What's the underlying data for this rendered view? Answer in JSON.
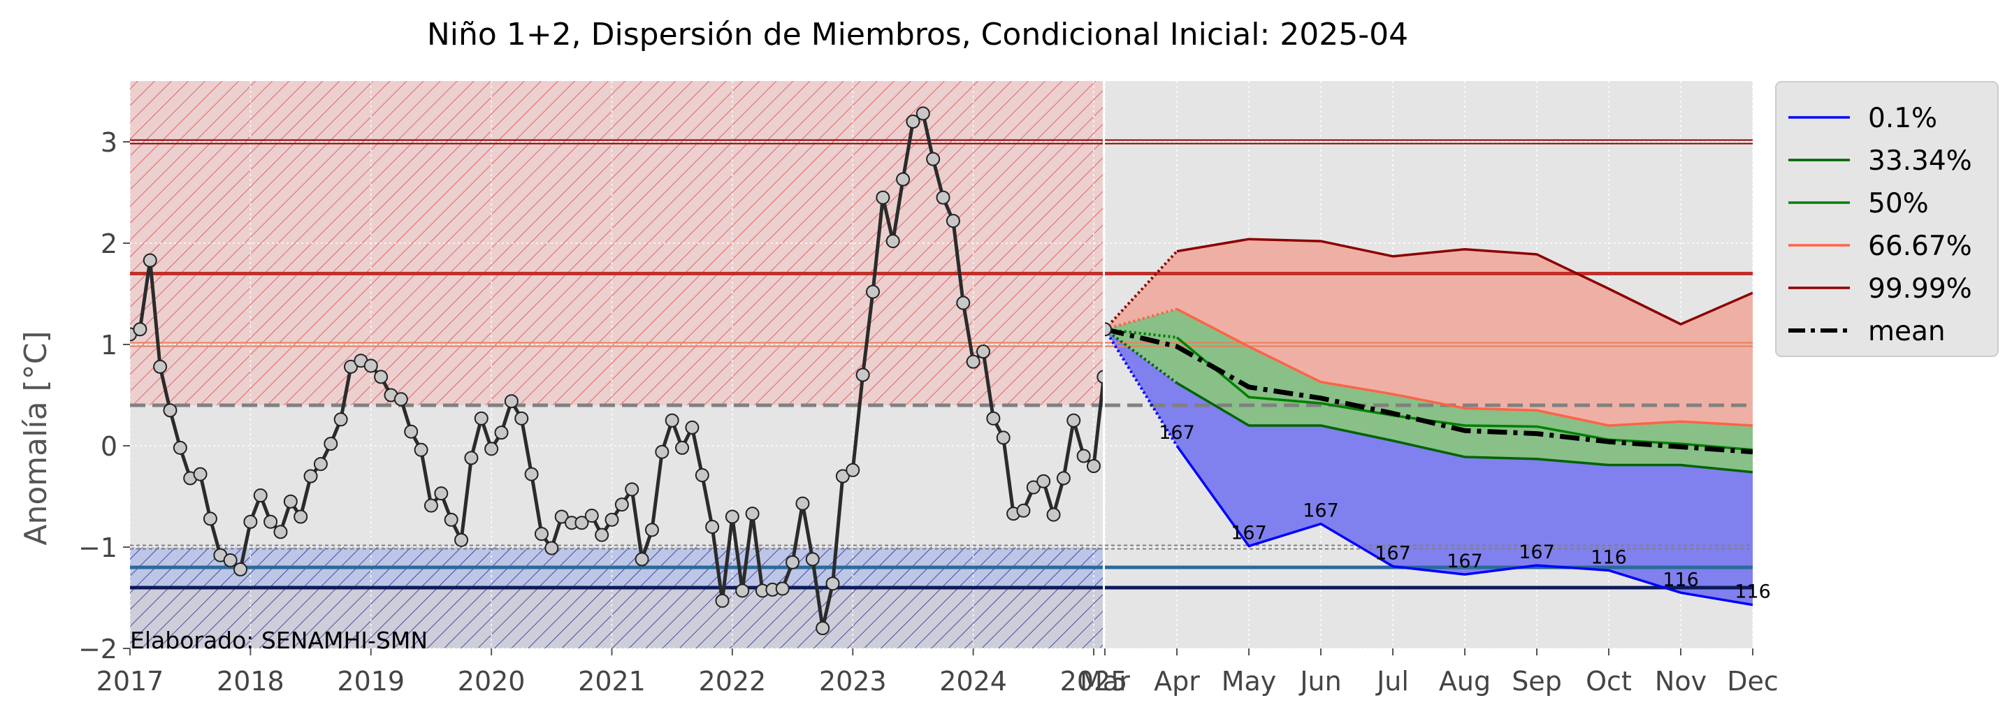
{
  "chart_data": {
    "type": "line",
    "title": "Niño 1+2, Dispersión de Miembros, Condicional Inicial: 2025-04",
    "ylabel": "Anomalía [°C]",
    "xlabel": "",
    "ylim": [
      -2,
      3.6
    ],
    "grid": true,
    "legend_position": "right-outside-top",
    "credit": "Elaborado: SENAMHI-SMN",
    "colors": {
      "background": "#e5e5e5",
      "observed_line": "#2b2b2b",
      "warm_hatch": "#dc1e1e",
      "cold_hatch": "#1f1f8c",
      "p01": "#0000ff",
      "p3334": "#006400",
      "p50": "#008000",
      "p6667": "#ff6347",
      "p9999": "#8b0000",
      "mean": "#000000",
      "fill_low": "#8080ee",
      "fill_mid": "#88c088",
      "fill_high": "#eeb0a4"
    },
    "y_ticks": [
      {
        "v": 3,
        "label": "3"
      },
      {
        "v": 2,
        "label": "2"
      },
      {
        "v": 1,
        "label": "1"
      },
      {
        "v": 0,
        "label": "0"
      },
      {
        "v": -1,
        "label": "−1"
      },
      {
        "v": -2,
        "label": "−2"
      }
    ],
    "history_ticks": [
      "2017",
      "2018",
      "2019",
      "2020",
      "2021",
      "2022",
      "2023",
      "2024",
      "2025"
    ],
    "forecast_ticks": [
      "Mar",
      "Apr",
      "May",
      "Jun",
      "Jul",
      "Aug",
      "Sep",
      "Oct",
      "Nov",
      "Dec"
    ],
    "thresholds": [
      {
        "name": "extraordinary-warm",
        "v": 3.0,
        "style": "double",
        "color": "#8b0000"
      },
      {
        "name": "strong-warm",
        "v": 1.7,
        "style": "solid",
        "color": "#c0302a"
      },
      {
        "name": "moderate-warm",
        "v": 1.0,
        "style": "double",
        "color": "#e8805a"
      },
      {
        "name": "weak-warm",
        "v": 0.4,
        "style": "dashed",
        "color": "#808080"
      },
      {
        "name": "weak-cold",
        "v": -1.0,
        "style": "dotted",
        "color": "#808080"
      },
      {
        "name": "moderate-cold",
        "v": -1.2,
        "style": "solid",
        "color": "#2a6a9a"
      },
      {
        "name": "strong-cold",
        "v": -1.4,
        "style": "solid",
        "color": "#0a1a5a"
      }
    ],
    "observed": {
      "start": "2017-01",
      "values": [
        1.1,
        1.15,
        1.83,
        0.78,
        0.35,
        -0.02,
        -0.32,
        -0.28,
        -0.72,
        -1.08,
        -1.13,
        -1.22,
        -0.75,
        -0.49,
        -0.75,
        -0.85,
        -0.55,
        -0.7,
        -0.3,
        -0.18,
        0.02,
        0.26,
        0.78,
        0.84,
        0.79,
        0.68,
        0.5,
        0.46,
        0.14,
        -0.04,
        -0.59,
        -0.47,
        -0.73,
        -0.93,
        -0.12,
        0.27,
        -0.03,
        0.13,
        0.44,
        0.27,
        -0.28,
        -0.87,
        -1.01,
        -0.7,
        -0.76,
        -0.76,
        -0.69,
        -0.88,
        -0.73,
        -0.58,
        -0.43,
        -1.12,
        -0.83,
        -0.06,
        0.25,
        -0.02,
        0.18,
        -0.29,
        -0.8,
        -1.53,
        -0.7,
        -1.43,
        -0.67,
        -1.43,
        -1.42,
        -1.41,
        -1.15,
        -0.57,
        -1.12,
        -1.8,
        -1.36,
        -0.3,
        -0.24,
        0.7,
        1.52,
        2.45,
        2.02,
        2.63,
        3.2,
        3.28,
        2.83,
        2.45,
        2.22,
        1.41,
        0.83,
        0.93,
        0.27,
        0.08,
        -0.67,
        -0.64,
        -0.41,
        -0.35,
        -0.68,
        -0.32,
        0.25,
        -0.1,
        -0.2,
        0.68,
        1.15
      ]
    },
    "forecast": {
      "months": [
        "Mar",
        "Apr",
        "May",
        "Jun",
        "Jul",
        "Aug",
        "Sep",
        "Oct",
        "Nov",
        "Dec"
      ],
      "series": [
        {
          "name": "0.1%",
          "key": "p01",
          "values": [
            1.15,
            0.0,
            -0.99,
            -0.77,
            -1.19,
            -1.27,
            -1.18,
            -1.23,
            -1.45,
            -1.57
          ]
        },
        {
          "name": "33.34%",
          "key": "p3334",
          "values": [
            1.15,
            0.62,
            0.2,
            0.2,
            0.05,
            -0.11,
            -0.13,
            -0.19,
            -0.19,
            -0.26
          ]
        },
        {
          "name": "50%",
          "key": "p50",
          "values": [
            1.15,
            1.07,
            0.48,
            0.42,
            0.3,
            0.2,
            0.19,
            0.06,
            0.02,
            -0.04
          ]
        },
        {
          "name": "66.67%",
          "key": "p6667",
          "values": [
            1.15,
            1.35,
            0.98,
            0.63,
            0.51,
            0.37,
            0.35,
            0.2,
            0.24,
            0.2
          ]
        },
        {
          "name": "99.99%",
          "key": "p9999",
          "values": [
            1.15,
            1.92,
            2.04,
            2.02,
            1.87,
            1.94,
            1.89,
            1.55,
            1.2,
            1.51
          ]
        },
        {
          "name": "mean",
          "key": "mean",
          "values": [
            1.15,
            0.98,
            0.58,
            0.47,
            0.32,
            0.15,
            0.12,
            0.04,
            -0.01,
            -0.06
          ]
        }
      ],
      "member_counts": [
        {
          "month": "Apr",
          "label": "167"
        },
        {
          "month": "May",
          "label": "167"
        },
        {
          "month": "Jun",
          "label": "167"
        },
        {
          "month": "Jul",
          "label": "167"
        },
        {
          "month": "Aug",
          "label": "167"
        },
        {
          "month": "Sep",
          "label": "167"
        },
        {
          "month": "Oct",
          "label": "116"
        },
        {
          "month": "Nov",
          "label": "116"
        },
        {
          "month": "Dec",
          "label": "116"
        }
      ]
    }
  }
}
